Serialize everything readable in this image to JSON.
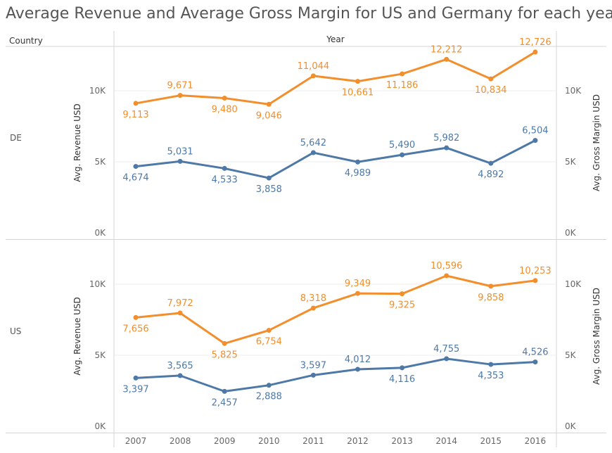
{
  "title": "Average Revenue and Average Gross Margin for US and Germany for each year",
  "headers": {
    "country": "Country",
    "year": "Year"
  },
  "colors": {
    "revenue": "#4e79a7",
    "gross_margin": "#f28e2b"
  },
  "chart_data": {
    "type": "line",
    "x": [
      "2007",
      "2008",
      "2009",
      "2010",
      "2011",
      "2012",
      "2013",
      "2014",
      "2015",
      "2016"
    ],
    "ylabel": "Avg. Revenue USD",
    "y2label": "Avg. Gross Margin USD",
    "yticks": [
      "0K",
      "5K",
      "10K"
    ],
    "ylim": [
      0,
      13500
    ],
    "grid": true,
    "panels": [
      {
        "country": "DE",
        "series": [
          {
            "key": "revenue",
            "values": [
              4674,
              5031,
              4533,
              3858,
              5642,
              4989,
              5490,
              5982,
              4892,
              6504
            ],
            "labels": [
              "4,674",
              "5,031",
              "4,533",
              "3,858",
              "5,642",
              "4,989",
              "5,490",
              "5,982",
              "4,892",
              "6,504"
            ]
          },
          {
            "key": "gross_margin",
            "values": [
              9113,
              9671,
              9480,
              9046,
              11044,
              10661,
              11186,
              12212,
              10834,
              12726
            ],
            "labels": [
              "9,113",
              "9,671",
              "9,480",
              "9,046",
              "11,044",
              "10,661",
              "11,186",
              "12,212",
              "10,834",
              "12,726"
            ]
          }
        ]
      },
      {
        "country": "US",
        "series": [
          {
            "key": "revenue",
            "values": [
              3397,
              3565,
              2457,
              2888,
              3597,
              4012,
              4116,
              4755,
              4353,
              4526
            ],
            "labels": [
              "3,397",
              "3,565",
              "2,457",
              "2,888",
              "3,597",
              "4,012",
              "4,116",
              "4,755",
              "4,353",
              "4,526"
            ]
          },
          {
            "key": "gross_margin",
            "values": [
              7656,
              7972,
              5825,
              6754,
              8318,
              9349,
              9325,
              10596,
              9858,
              10253
            ],
            "labels": [
              "7,656",
              "7,972",
              "5,825",
              "6,754",
              "8,318",
              "9,349",
              "9,325",
              "10,596",
              "9,858",
              "10,253"
            ]
          }
        ]
      }
    ]
  }
}
